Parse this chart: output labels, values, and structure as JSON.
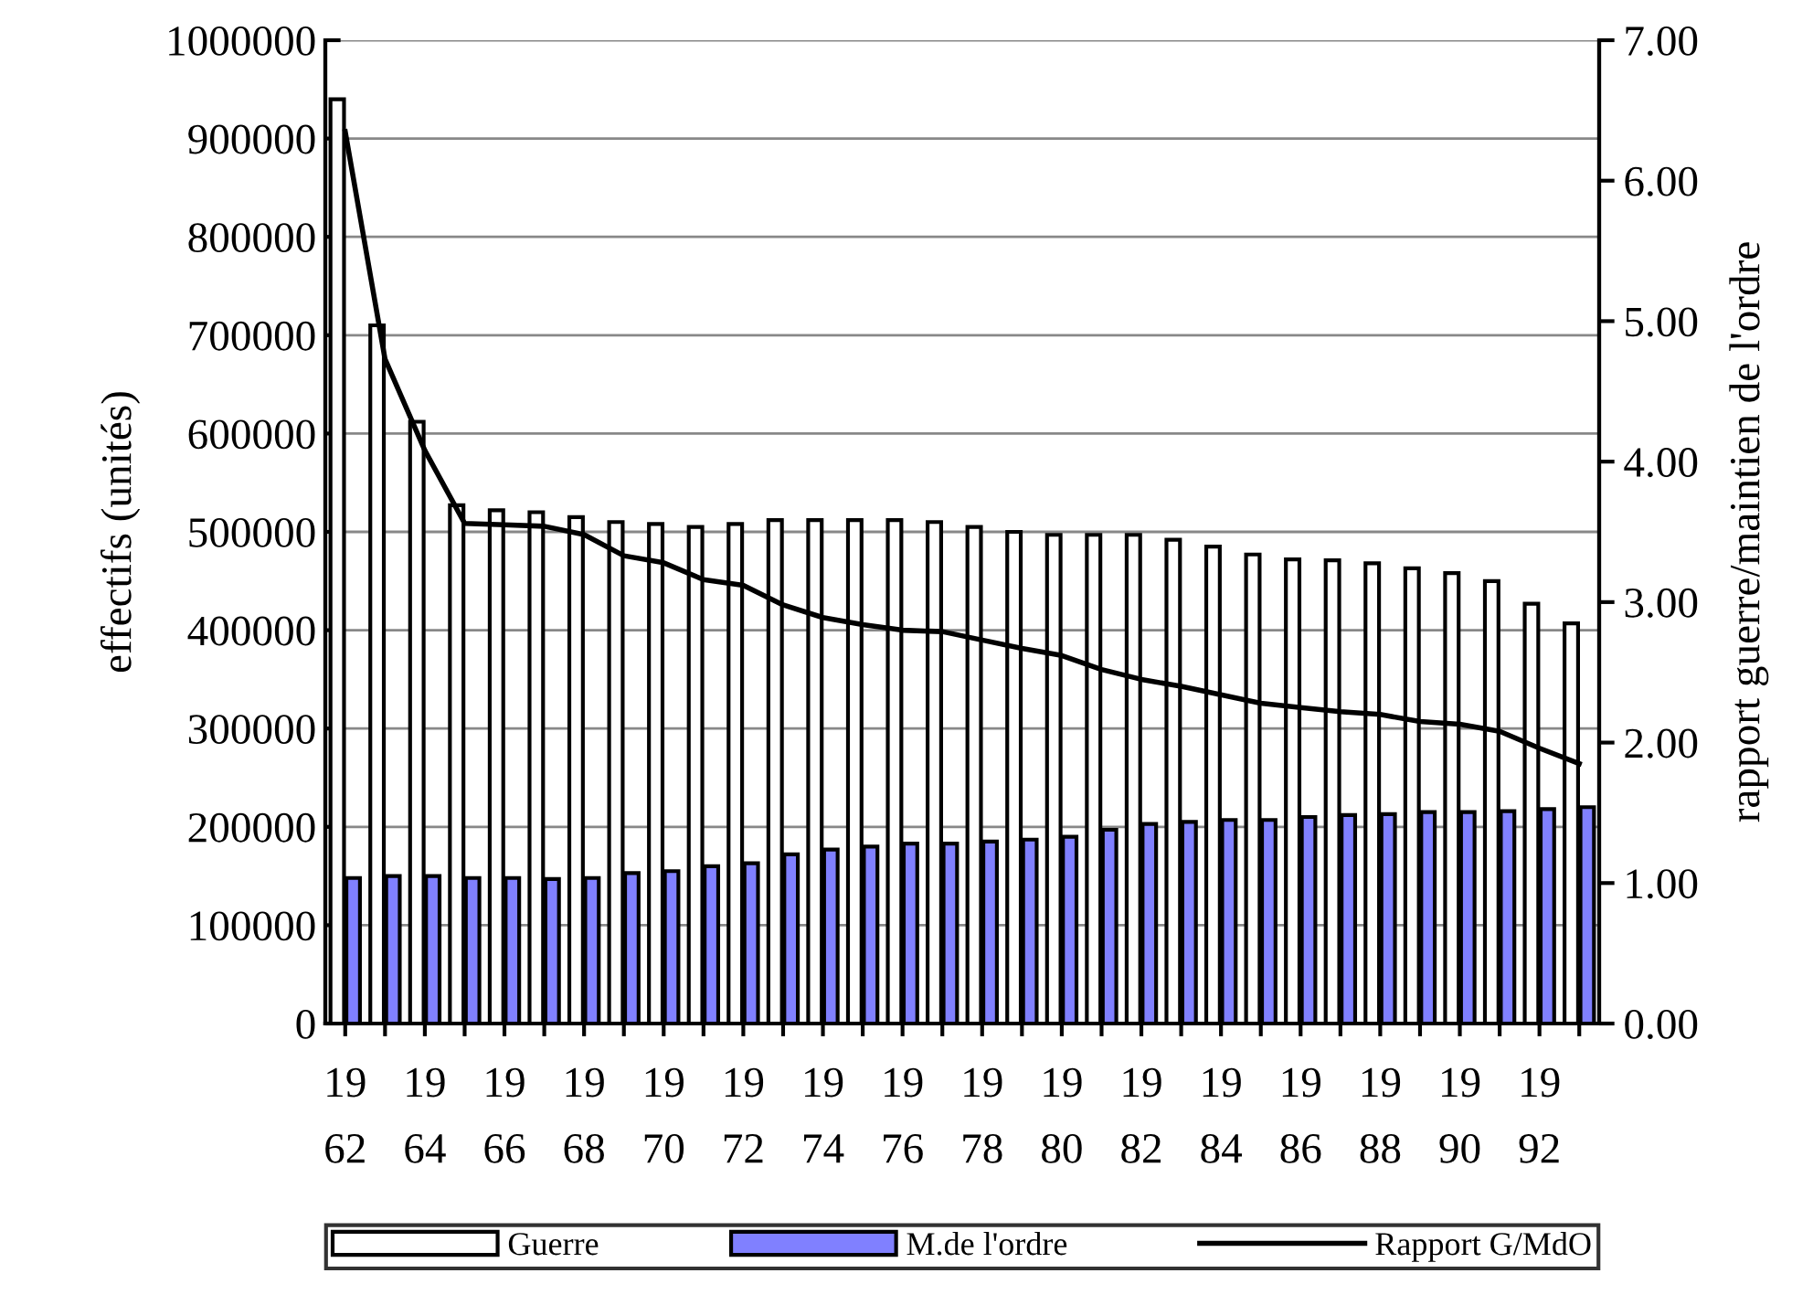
{
  "chart_data": {
    "type": "bar",
    "categories": [
      "19\n62",
      null,
      "19\n64",
      null,
      "19\n66",
      null,
      "19\n68",
      null,
      "19\n70",
      null,
      "19\n72",
      null,
      "19\n74",
      null,
      "19\n76",
      null,
      "19\n78",
      null,
      "19\n80",
      null,
      "19\n82",
      null,
      "19\n84",
      null,
      "19\n86",
      null,
      "19\n88",
      null,
      "19\n90",
      null,
      "19\n92",
      null
    ],
    "series": [
      {
        "name": "Guerre",
        "color": "#ffffff",
        "values": [
          940000,
          710000,
          612000,
          527000,
          522000,
          520000,
          515000,
          510000,
          508000,
          505000,
          508000,
          512000,
          512000,
          512000,
          512000,
          510000,
          505000,
          500000,
          497000,
          497000,
          497000,
          492000,
          485000,
          477000,
          472000,
          471000,
          468000,
          463000,
          458000,
          450000,
          427000,
          407000
        ]
      },
      {
        "name": "M.de l'ordre",
        "color": "#8080ff",
        "values": [
          148000,
          150000,
          150000,
          148000,
          148000,
          147000,
          148000,
          153000,
          155000,
          160000,
          163000,
          172000,
          177000,
          180000,
          183000,
          183000,
          185000,
          187000,
          190000,
          197000,
          203000,
          205000,
          207000,
          207000,
          210000,
          212000,
          213000,
          215000,
          215000,
          216000,
          218000,
          220000
        ]
      },
      {
        "name": "Rapport G/MdO",
        "type": "line",
        "axis": "y2",
        "color": "#000000",
        "values": [
          6.35,
          4.73,
          4.08,
          3.56,
          3.55,
          3.54,
          3.48,
          3.33,
          3.28,
          3.16,
          3.12,
          2.98,
          2.89,
          2.84,
          2.8,
          2.79,
          2.73,
          2.67,
          2.62,
          2.52,
          2.45,
          2.4,
          2.34,
          2.28,
          2.25,
          2.22,
          2.2,
          2.15,
          2.13,
          2.08,
          1.96,
          1.85
        ]
      }
    ],
    "ylabel": "effectifs (unités)",
    "y2label": "rapport guerre/maintien de l'ordre",
    "ylim": [
      0,
      1000000
    ],
    "yticks": [
      0,
      100000,
      200000,
      300000,
      400000,
      500000,
      600000,
      700000,
      800000,
      900000,
      1000000
    ],
    "y2lim": [
      0,
      7
    ],
    "y2ticks": [
      {
        "value": 0,
        "label": "0.00"
      },
      {
        "value": 1,
        "label": "1.00"
      },
      {
        "value": 2,
        "label": "2.00"
      },
      {
        "value": 3,
        "label": "3.00"
      },
      {
        "value": 4,
        "label": "4.00"
      },
      {
        "value": 5,
        "label": "5.00"
      },
      {
        "value": 6,
        "label": "6.00"
      },
      {
        "value": 7,
        "label": "7.00"
      }
    ],
    "grid": "y",
    "legend": "bottom",
    "marker": "none",
    "line_style": "solid"
  }
}
